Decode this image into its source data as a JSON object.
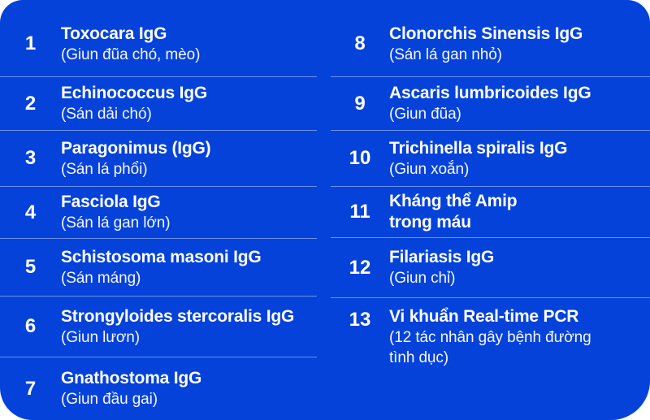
{
  "card": {
    "background_color": "#0442da",
    "divider_color": "rgba(255,255,255,0.42)",
    "text_color": "#ffffff"
  },
  "columns": [
    {
      "items": [
        {
          "number": "1",
          "title": "Toxocara IgG",
          "subtitle": "(Giun đũa chó, mèo)"
        },
        {
          "number": "2",
          "title": "Echinococcus IgG",
          "subtitle": "(Sán dải chó)"
        },
        {
          "number": "3",
          "title": "Paragonimus (IgG)",
          "subtitle": "(Sán lá phổi)"
        },
        {
          "number": "4",
          "title": "Fasciola IgG",
          "subtitle": "(Sán lá gan lớn)"
        },
        {
          "number": "5",
          "title": "Schistosoma masoni IgG",
          "subtitle": "(Sán máng)"
        },
        {
          "number": "6",
          "title": "Strongyloides stercoralis IgG",
          "subtitle": "(Giun lươn)"
        },
        {
          "number": "7",
          "title": "Gnathostoma IgG",
          "subtitle": "(Giun đầu gai)"
        }
      ]
    },
    {
      "items": [
        {
          "number": "8",
          "title": "Clonorchis Sinensis IgG",
          "subtitle": "(Sán lá gan nhỏ)"
        },
        {
          "number": "9",
          "title": "Ascaris lumbricoides IgG",
          "subtitle": "(Giun đũa)"
        },
        {
          "number": "10",
          "title": "Trichinella spiralis IgG",
          "subtitle": "(Giun xoắn)"
        },
        {
          "number": "11",
          "title": "Kháng thể Amip",
          "title2": "trong máu"
        },
        {
          "number": "12",
          "title": "Filariasis IgG",
          "subtitle": "(Giun chỉ)"
        },
        {
          "number": "13",
          "title": "Vi khuẩn Real-time PCR",
          "subtitle": "(12 tác nhân gây bệnh đường tình dục)"
        }
      ]
    }
  ]
}
